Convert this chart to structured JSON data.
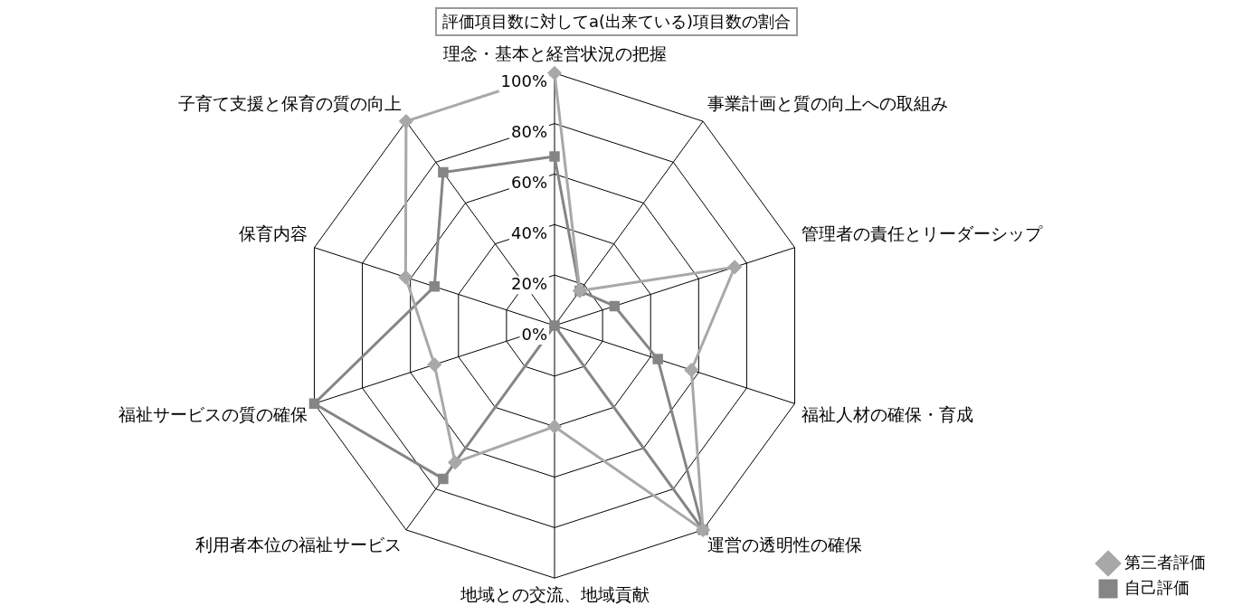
{
  "chart_data": {
    "type": "radar",
    "title": "評価項目数に対してa(出来ている)項目数の割合",
    "categories": [
      "理念・基本と経営状況の把握",
      "事業計画と質の向上への取組み",
      "管理者の責任とリーダーシップ",
      "福祉人材の確保・育成",
      "運営の透明性の確保",
      "地域との交流、地域貢献",
      "利用者本位の福祉サービス",
      "福祉サービスの質の確保",
      "保育内容",
      "子育て支援と保育の質の向上"
    ],
    "series": [
      {
        "name": "第三者評価",
        "color": "#a8a8a8",
        "marker": "diamond",
        "values": [
          100,
          17,
          75,
          57,
          100,
          40,
          67,
          50,
          62,
          100
        ]
      },
      {
        "name": "自己評価",
        "color": "#858585",
        "marker": "square",
        "values": [
          67,
          17,
          25,
          43,
          100,
          0,
          75,
          100,
          50,
          75
        ]
      }
    ],
    "ylim": [
      0,
      100
    ],
    "yticks": [
      {
        "value": 0,
        "label": "0%"
      },
      {
        "value": 20,
        "label": "20%"
      },
      {
        "value": 40,
        "label": "40%"
      },
      {
        "value": 60,
        "label": "60%"
      },
      {
        "value": 80,
        "label": "80%"
      },
      {
        "value": 100,
        "label": "100%"
      }
    ],
    "grid": true,
    "legend": "bottom right"
  }
}
